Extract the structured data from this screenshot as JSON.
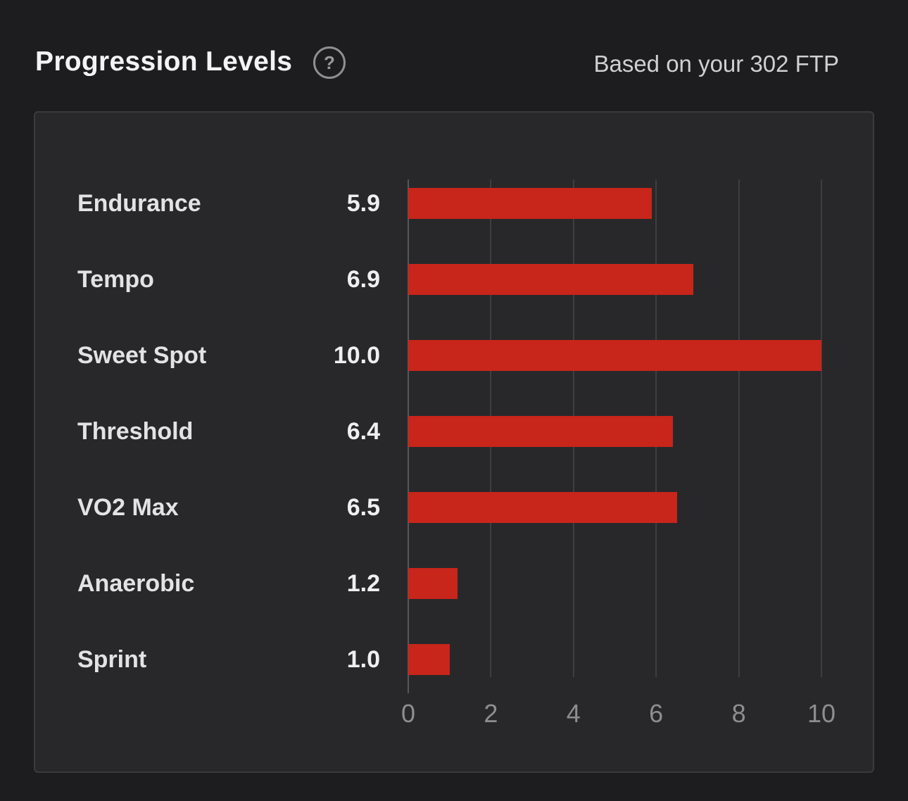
{
  "header": {
    "title": "Progression Levels",
    "help_icon": "?",
    "subtitle": "Based on your 302 FTP"
  },
  "chart_data": {
    "type": "bar",
    "orientation": "horizontal",
    "title": "Progression Levels",
    "subtitle": "Based on your 302 FTP",
    "categories": [
      "Endurance",
      "Tempo",
      "Sweet Spot",
      "Threshold",
      "VO2 Max",
      "Anaerobic",
      "Sprint"
    ],
    "values": [
      5.9,
      6.9,
      10.0,
      6.4,
      6.5,
      1.2,
      1.0
    ],
    "value_labels": [
      "5.9",
      "6.9",
      "10.0",
      "6.4",
      "6.5",
      "1.2",
      "1.0"
    ],
    "x_ticks": [
      0,
      2,
      4,
      6,
      8,
      10
    ],
    "xlim": [
      0,
      10
    ],
    "grid": "vertical-gridlines",
    "legend": "none",
    "bar_color": "#c8251b"
  },
  "colors": {
    "page_background": "#1d1d1f",
    "card_background": "#28282a",
    "card_border": "#3b3b3e",
    "bar": "#c8251b",
    "gridline": "#3e3e41",
    "axis_line": "#57575a",
    "title_text": "#f3f3f4",
    "subtitle_text": "#d0d0d2",
    "label_text": "#e3e3e5",
    "value_text": "#efeff0",
    "tick_text": "#8e8e90",
    "help_icon": "#8f8f91"
  }
}
